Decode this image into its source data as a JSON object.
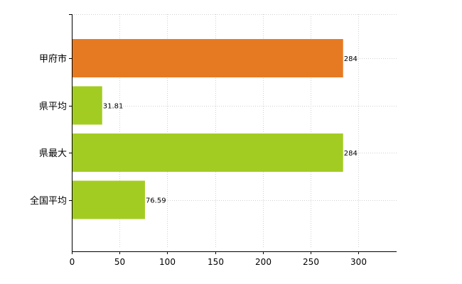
{
  "chart_data": {
    "type": "bar",
    "orientation": "horizontal",
    "categories": [
      "甲府市",
      "県平均",
      "県最大",
      "全国平均"
    ],
    "values": [
      284,
      31.81,
      284,
      76.59
    ],
    "value_labels": [
      "284",
      "31.81",
      "284",
      "76.59"
    ],
    "bar_colors": [
      "#e67a22",
      "#a3cc22",
      "#a3cc22",
      "#a3cc22"
    ],
    "xlim": [
      0,
      340
    ],
    "xticks": [
      0,
      50,
      100,
      150,
      200,
      250,
      300
    ],
    "grid": true,
    "title": "",
    "xlabel": "",
    "ylabel": ""
  }
}
